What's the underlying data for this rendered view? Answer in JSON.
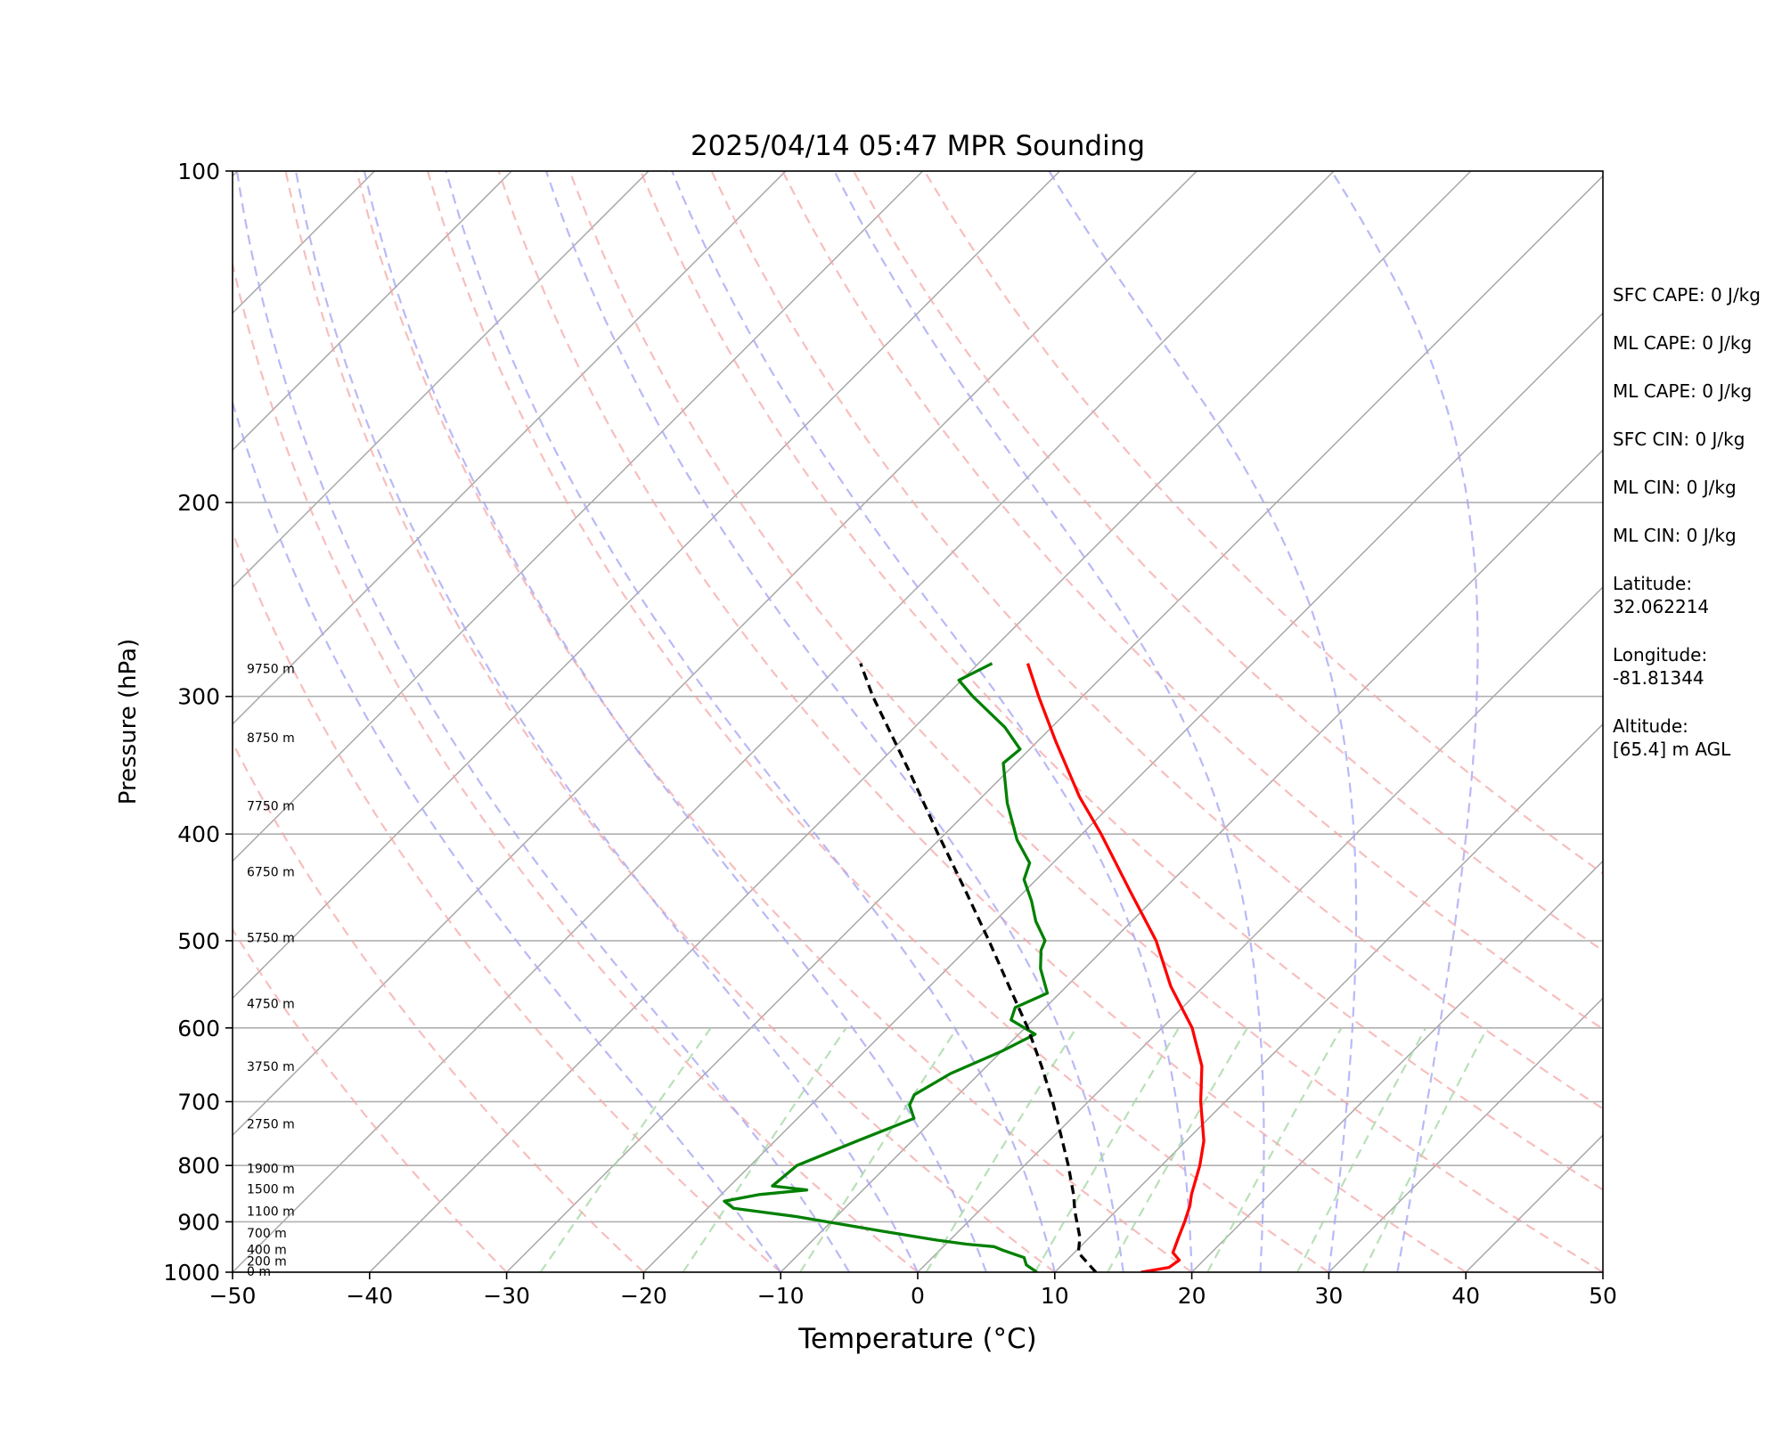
{
  "chart_data": {
    "type": "line",
    "title": "2025/04/14 05:47 MPR Sounding",
    "xlabel": "Temperature (°C)",
    "ylabel": "Pressure (hPa)",
    "xlim": [
      -50,
      50
    ],
    "ylim": [
      1000,
      100
    ],
    "yscale": "log",
    "skew": true,
    "grid": true,
    "x_ticks": [
      "−50",
      "−40",
      "−30",
      "−20",
      "−10",
      "0",
      "10",
      "20",
      "30",
      "40",
      "50"
    ],
    "y_ticks": [
      "100",
      "200",
      "300",
      "400",
      "500",
      "600",
      "700",
      "800",
      "900",
      "1000"
    ],
    "height_labels": [
      {
        "p": 998,
        "label": "0 m"
      },
      {
        "p": 977,
        "label": "200 m"
      },
      {
        "p": 954,
        "label": "400 m"
      },
      {
        "p": 921,
        "label": "700 m"
      },
      {
        "p": 880,
        "label": "1100 m"
      },
      {
        "p": 840,
        "label": "1500 m"
      },
      {
        "p": 805,
        "label": "1900 m"
      },
      {
        "p": 733,
        "label": "2750 m"
      },
      {
        "p": 650,
        "label": "3750 m"
      },
      {
        "p": 570,
        "label": "4750 m"
      },
      {
        "p": 497,
        "label": "5750 m"
      },
      {
        "p": 433,
        "label": "6750 m"
      },
      {
        "p": 377,
        "label": "7750 m"
      },
      {
        "p": 327,
        "label": "8750 m"
      },
      {
        "p": 283,
        "label": "9750 m"
      }
    ],
    "series": [
      {
        "color": "#ff0000",
        "points": [
          {
            "p": 1000,
            "t": 16.3
          },
          {
            "p": 990,
            "t": 18.0
          },
          {
            "p": 975,
            "t": 18.2
          },
          {
            "p": 960,
            "t": 17.2
          },
          {
            "p": 930,
            "t": 16.5
          },
          {
            "p": 900,
            "t": 15.8
          },
          {
            "p": 870,
            "t": 15.0
          },
          {
            "p": 850,
            "t": 14.3
          },
          {
            "p": 800,
            "t": 12.8
          },
          {
            "p": 760,
            "t": 11.3
          },
          {
            "p": 700,
            "t": 8.2
          },
          {
            "p": 650,
            "t": 5.7
          },
          {
            "p": 600,
            "t": 2.2
          },
          {
            "p": 550,
            "t": -2.4
          },
          {
            "p": 500,
            "t": -6.8
          },
          {
            "p": 450,
            "t": -12.4
          },
          {
            "p": 400,
            "t": -18.6
          },
          {
            "p": 370,
            "t": -22.9
          },
          {
            "p": 330,
            "t": -28.6
          },
          {
            "p": 300,
            "t": -33.2
          },
          {
            "p": 280,
            "t": -36.4
          }
        ]
      },
      {
        "color": "#008000",
        "points": [
          {
            "p": 1000,
            "t": 8.7
          },
          {
            "p": 985,
            "t": 7.4
          },
          {
            "p": 970,
            "t": 6.7
          },
          {
            "p": 955,
            "t": 4.6
          },
          {
            "p": 948,
            "t": 3.7
          },
          {
            "p": 943,
            "t": 1.5
          },
          {
            "p": 935,
            "t": -1.0
          },
          {
            "p": 918,
            "t": -5.5
          },
          {
            "p": 890,
            "t": -13.0
          },
          {
            "p": 875,
            "t": -18.1
          },
          {
            "p": 862,
            "t": -19.3
          },
          {
            "p": 850,
            "t": -17.2
          },
          {
            "p": 842,
            "t": -14.1
          },
          {
            "p": 835,
            "t": -16.9
          },
          {
            "p": 800,
            "t": -16.6
          },
          {
            "p": 760,
            "t": -14.0
          },
          {
            "p": 725,
            "t": -11.5
          },
          {
            "p": 705,
            "t": -12.8
          },
          {
            "p": 690,
            "t": -13.2
          },
          {
            "p": 660,
            "t": -12.1
          },
          {
            "p": 630,
            "t": -10.0
          },
          {
            "p": 608,
            "t": -8.8
          },
          {
            "p": 590,
            "t": -11.6
          },
          {
            "p": 575,
            "t": -12.2
          },
          {
            "p": 558,
            "t": -10.9
          },
          {
            "p": 530,
            "t": -13.2
          },
          {
            "p": 510,
            "t": -14.5
          },
          {
            "p": 500,
            "t": -14.9
          },
          {
            "p": 480,
            "t": -17.0
          },
          {
            "p": 460,
            "t": -18.8
          },
          {
            "p": 440,
            "t": -20.9
          },
          {
            "p": 425,
            "t": -21.7
          },
          {
            "p": 405,
            "t": -24.3
          },
          {
            "p": 375,
            "t": -27.7
          },
          {
            "p": 345,
            "t": -30.9
          },
          {
            "p": 335,
            "t": -30.7
          },
          {
            "p": 320,
            "t": -33.4
          },
          {
            "p": 300,
            "t": -38.0
          },
          {
            "p": 290,
            "t": -40.2
          },
          {
            "p": 280,
            "t": -39.0
          }
        ]
      },
      {
        "color": "#000000",
        "dashed": true,
        "points": [
          {
            "p": 1000,
            "t": 13.0
          },
          {
            "p": 960,
            "t": 10.3
          },
          {
            "p": 930,
            "t": 9.3
          },
          {
            "p": 880,
            "t": 7.0
          },
          {
            "p": 850,
            "t": 5.7
          },
          {
            "p": 800,
            "t": 3.2
          },
          {
            "p": 750,
            "t": 0.4
          },
          {
            "p": 700,
            "t": -2.6
          },
          {
            "p": 650,
            "t": -6.0
          },
          {
            "p": 600,
            "t": -9.8
          },
          {
            "p": 550,
            "t": -14.2
          },
          {
            "p": 500,
            "t": -19.0
          },
          {
            "p": 450,
            "t": -24.4
          },
          {
            "p": 400,
            "t": -30.5
          },
          {
            "p": 350,
            "t": -37.3
          },
          {
            "p": 300,
            "t": -45.3
          },
          {
            "p": 280,
            "t": -48.6
          }
        ]
      }
    ],
    "dry_adiabats_c": [
      -30,
      -20,
      -10,
      0,
      10,
      20,
      30,
      40,
      50,
      60,
      70,
      80,
      90,
      100
    ],
    "moist_adiabats_c": [
      -10,
      -5,
      0,
      5,
      10,
      15,
      20,
      25,
      30,
      35
    ],
    "mixing_ratios_gkg": [
      0.4,
      1,
      2,
      4,
      7,
      10,
      16,
      24,
      32
    ],
    "isotherm_step": 10
  },
  "info": {
    "sfc_cape": "SFC CAPE: 0 J/kg",
    "ml_cape_1": "ML CAPE: 0 J/kg",
    "ml_cape_2": "ML CAPE: 0 J/kg",
    "sfc_cin": "SFC CIN: 0 J/kg",
    "ml_cin_1": "ML CIN: 0 J/kg",
    "ml_cin_2": "ML CIN: 0 J/kg",
    "latitude_label": "Latitude:",
    "latitude_value": "32.062214",
    "longitude_label": "Longitude:",
    "longitude_value": "-81.81344",
    "altitude_label": "Altitude:",
    "altitude_value": "[65.4] m AGL"
  }
}
